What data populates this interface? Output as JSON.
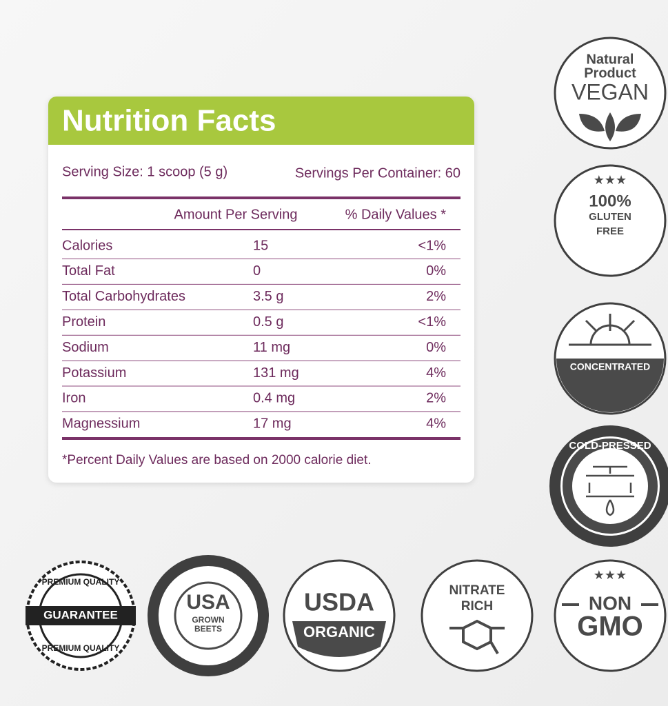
{
  "nutrition_facts": {
    "title": "Nutrition Facts",
    "serving_size": "Serving Size: 1 scoop (5 g)",
    "servings_per_container": "Servings Per Container: 60",
    "columns": [
      "Amount Per Serving",
      "% Daily Values *"
    ],
    "rows": [
      [
        "Calories",
        "15",
        "<1%"
      ],
      [
        "Total Fat",
        "0",
        "0%"
      ],
      [
        "Total Carbohydrates",
        "3.5 g",
        "2%"
      ],
      [
        "Protein",
        "0.5 g",
        "<1%"
      ],
      [
        "Sodium",
        "11 mg",
        "0%"
      ],
      [
        "Potassium",
        "131 mg",
        "4%"
      ],
      [
        "Iron",
        "0.4 mg",
        "2%"
      ],
      [
        "Magnessium",
        "17 mg",
        "4%"
      ]
    ],
    "footnote": "*Percent Daily Values are based on 2000 calorie diet."
  },
  "badges": [
    {
      "lines": [
        "Natural",
        "Product",
        "VEGAN"
      ]
    },
    {
      "lines": [
        "100%",
        "GLUTEN",
        "FREE"
      ]
    },
    {
      "lines": [
        "CONCENTRATED"
      ]
    },
    {
      "lines": [
        "COLD-PRESSED"
      ]
    },
    {
      "lines": [
        "PREMIUM QUALITY",
        "GUARANTEE",
        "PREMIUM QUALITY"
      ]
    },
    {
      "lines": [
        "USA",
        "GROWN",
        "BEETS"
      ]
    },
    {
      "lines": [
        "USDA",
        "ORGANIC"
      ]
    },
    {
      "lines": [
        "NITRATE",
        "RICH"
      ]
    },
    {
      "lines": [
        "NON",
        "GMO"
      ]
    }
  ]
}
